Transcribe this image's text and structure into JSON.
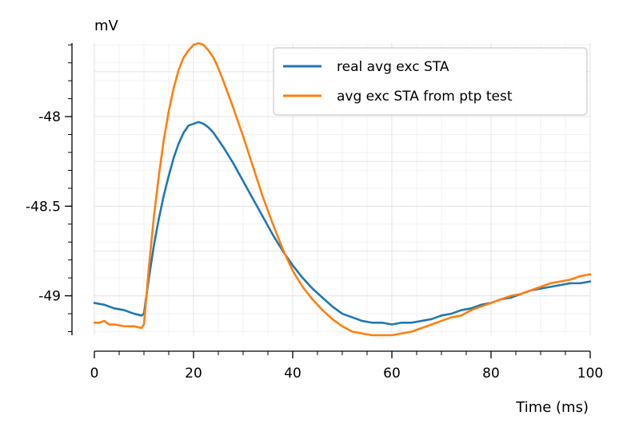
{
  "chart_data": {
    "type": "line",
    "ylabel": "mV",
    "xlabel": "Time (ms)",
    "xlim": [
      0,
      100
    ],
    "ylim": [
      -49.22,
      -47.59
    ],
    "x_ticks": [
      0,
      20,
      40,
      60,
      80,
      100
    ],
    "x_tick_labels": [
      "0",
      "20",
      "40",
      "60",
      "80",
      "100"
    ],
    "y_ticks": [
      -48,
      -48.5,
      -49
    ],
    "y_tick_labels": [
      "-48",
      "-48.5",
      "-49"
    ],
    "grid": true,
    "legend_position": "top-right",
    "series": [
      {
        "name": "real avg exc STA",
        "color": "#1f77b4",
        "x": [
          0,
          2,
          4,
          6,
          8,
          9.5,
          10,
          10.5,
          11,
          12,
          13,
          14,
          15,
          16,
          17,
          18,
          19,
          20,
          21,
          22,
          23,
          24,
          26,
          28,
          30,
          32,
          34,
          36,
          38,
          40,
          42,
          44,
          46,
          48,
          50,
          52,
          54,
          56,
          58,
          60,
          62,
          64,
          66,
          68,
          70,
          72,
          74,
          76,
          78,
          80,
          82,
          84,
          86,
          88,
          90,
          92,
          94,
          96,
          98,
          100
        ],
        "y": [
          -49.04,
          -49.05,
          -49.07,
          -49.08,
          -49.1,
          -49.11,
          -49.1,
          -49.0,
          -48.9,
          -48.72,
          -48.57,
          -48.44,
          -48.33,
          -48.23,
          -48.15,
          -48.09,
          -48.05,
          -48.04,
          -48.03,
          -48.04,
          -48.06,
          -48.09,
          -48.17,
          -48.26,
          -48.36,
          -48.46,
          -48.56,
          -48.66,
          -48.75,
          -48.83,
          -48.9,
          -48.96,
          -49.01,
          -49.06,
          -49.1,
          -49.12,
          -49.14,
          -49.15,
          -49.15,
          -49.16,
          -49.15,
          -49.15,
          -49.14,
          -49.13,
          -49.11,
          -49.1,
          -49.08,
          -49.07,
          -49.05,
          -49.04,
          -49.02,
          -49.01,
          -48.99,
          -48.97,
          -48.96,
          -48.95,
          -48.94,
          -48.93,
          -48.93,
          -48.92
        ]
      },
      {
        "name": "avg exc STA from ptp test",
        "color": "#ff7f0e",
        "x": [
          0,
          1,
          2,
          3,
          4,
          6,
          8,
          9.5,
          10,
          10.5,
          11,
          12,
          13,
          14,
          15,
          16,
          17,
          18,
          19,
          20,
          21,
          22,
          23,
          24,
          25,
          26,
          28,
          30,
          32,
          34,
          36,
          38,
          40,
          42,
          44,
          46,
          48,
          50,
          52,
          54,
          56,
          58,
          60,
          62,
          64,
          66,
          68,
          70,
          72,
          74,
          76,
          78,
          80,
          82,
          84,
          86,
          88,
          90,
          92,
          94,
          96,
          98,
          100
        ],
        "y": [
          -49.15,
          -49.15,
          -49.14,
          -49.16,
          -49.16,
          -49.17,
          -49.17,
          -49.18,
          -49.16,
          -49.0,
          -48.84,
          -48.56,
          -48.33,
          -48.13,
          -47.97,
          -47.84,
          -47.74,
          -47.67,
          -47.63,
          -47.6,
          -47.59,
          -47.6,
          -47.63,
          -47.67,
          -47.73,
          -47.8,
          -47.95,
          -48.11,
          -48.28,
          -48.45,
          -48.6,
          -48.74,
          -48.86,
          -48.95,
          -49.02,
          -49.08,
          -49.13,
          -49.17,
          -49.2,
          -49.21,
          -49.22,
          -49.22,
          -49.22,
          -49.21,
          -49.2,
          -49.18,
          -49.16,
          -49.14,
          -49.12,
          -49.11,
          -49.08,
          -49.06,
          -49.04,
          -49.02,
          -49.0,
          -48.99,
          -48.97,
          -48.95,
          -48.93,
          -48.92,
          -48.91,
          -48.89,
          -48.88
        ]
      }
    ]
  }
}
